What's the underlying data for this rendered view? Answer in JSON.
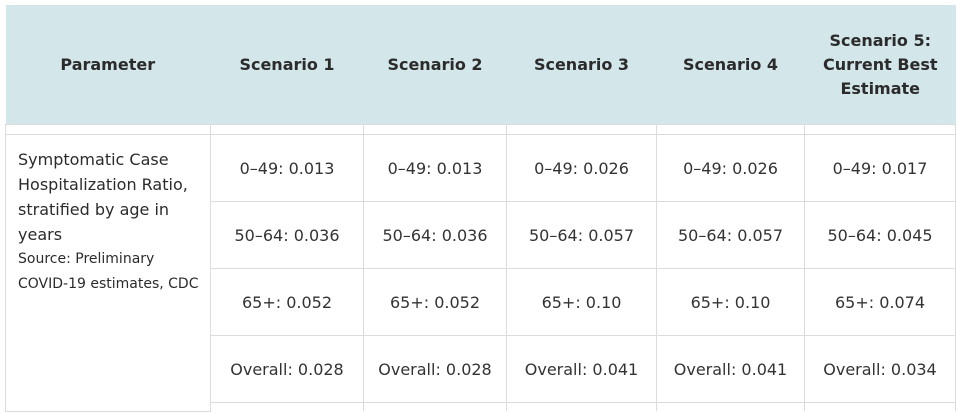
{
  "table": {
    "headers": {
      "parameter": "Parameter",
      "s1": "Scenario 1",
      "s2": "Scenario 2",
      "s3": "Scenario 3",
      "s4": "Scenario 4",
      "s5_line1": "Scenario 5:",
      "s5_line2": "Current Best",
      "s5_line3": "Estimate"
    },
    "parameter": {
      "title_lines": [
        "Symptomatic Case",
        "Hospitalization Ratio,",
        "stratified by age in",
        "years"
      ],
      "source_lines": [
        "Source: Preliminary",
        "COVID-19 estimates, CDC"
      ]
    },
    "rows": [
      [
        "0–49: 0.013",
        "0–49: 0.013",
        "0–49: 0.026",
        "0–49: 0.026",
        "0–49: 0.017"
      ],
      [
        "50–64: 0.036",
        "50–64: 0.036",
        "50–64: 0.057",
        "50–64: 0.057",
        "50–64: 0.045"
      ],
      [
        "65+: 0.052",
        "65+: 0.052",
        "65+: 0.10",
        "65+: 0.10",
        "65+: 0.074"
      ],
      [
        "Overall: 0.028",
        "Overall: 0.028",
        "Overall: 0.041",
        "Overall: 0.041",
        "Overall: 0.034"
      ]
    ]
  },
  "colors": {
    "header_bg": "#d3e6ea",
    "grid_line": "#dcdcdc",
    "text": "#2b2b2b"
  }
}
